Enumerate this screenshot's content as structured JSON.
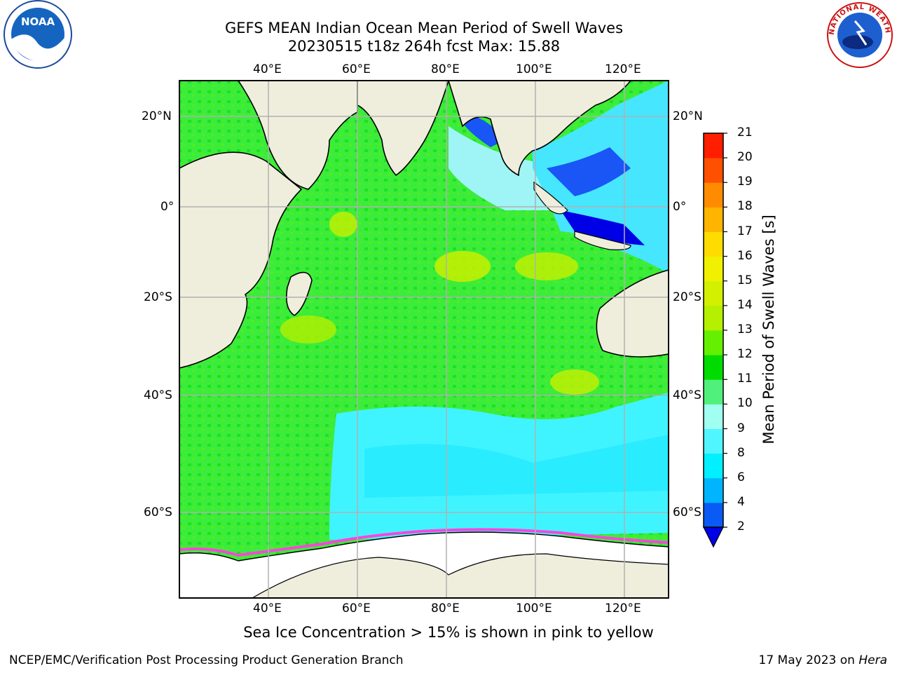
{
  "title": {
    "line1": "GEFS MEAN Indian Ocean Mean Period of Swell Waves",
    "line2": "20230515 t18z 264h fcst   Max: 15.88"
  },
  "map": {
    "lon_ticks": [
      "40°E",
      "60°E",
      "80°E",
      "100°E",
      "120°E"
    ],
    "lat_ticks": [
      "20°N",
      "0°",
      "20°S",
      "40°S",
      "60°S"
    ]
  },
  "colorbar": {
    "label": "Mean Period of Swell Waves [s]",
    "levels": [
      "2",
      "4",
      "6",
      "8",
      "9",
      "10",
      "11",
      "12",
      "13",
      "14",
      "15",
      "16",
      "17",
      "18",
      "19",
      "20",
      "21"
    ],
    "colors": [
      "#0a5af5",
      "#00b4ff",
      "#00f0ff",
      "#50f5ff",
      "#a0fff0",
      "#50f07a",
      "#00dc00",
      "#64f000",
      "#b4f000",
      "#d2f000",
      "#f0f000",
      "#ffdc00",
      "#ffb400",
      "#ff8c00",
      "#ff5000",
      "#ff1e00"
    ],
    "under_color": "#0000e6"
  },
  "sea_ice_note": "Sea Ice Concentration > 15% is shown in pink to yellow",
  "footer": {
    "left": "NCEP/EMC/Verification Post Processing Product Generation Branch",
    "date": "17 May 2023 on ",
    "host": "Hera"
  },
  "logos": {
    "left": "NOAA",
    "right_arc": "NATIONAL WEATHER SERVICE"
  }
}
